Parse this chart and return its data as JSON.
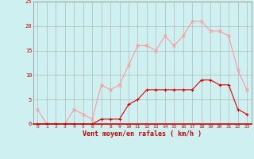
{
  "hours": [
    0,
    1,
    2,
    3,
    4,
    5,
    6,
    7,
    8,
    9,
    10,
    11,
    12,
    13,
    14,
    15,
    16,
    17,
    18,
    19,
    20,
    21,
    22,
    23
  ],
  "rafales": [
    3,
    0,
    0,
    0,
    3,
    2,
    1,
    8,
    7,
    8,
    12,
    16,
    16,
    15,
    18,
    16,
    18,
    21,
    21,
    19,
    19,
    18,
    11,
    7
  ],
  "moyen": [
    0,
    0,
    0,
    0,
    0,
    0,
    0,
    1,
    1,
    1,
    4,
    5,
    7,
    7,
    7,
    7,
    7,
    7,
    9,
    9,
    8,
    8,
    3,
    2
  ],
  "bg_color": "#cff0f0",
  "grid_color": "#aaaaaa",
  "line_color_rafales": "#ff9999",
  "line_color_moyen": "#dd0000",
  "xlabel": "Vent moyen/en rafales ( km/h )",
  "xlabel_color": "#cc0000",
  "tick_color": "#cc0000",
  "ylim": [
    0,
    25
  ],
  "yticks": [
    0,
    5,
    10,
    15,
    20,
    25
  ],
  "spine_color": "#888888"
}
